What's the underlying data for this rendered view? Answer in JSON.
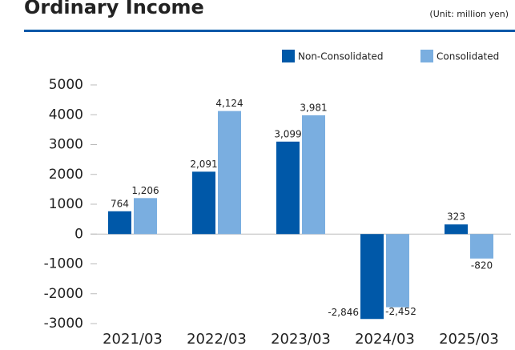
{
  "chart_data": {
    "type": "bar",
    "title": "Ordinary Income",
    "subtitle": "(Unit: million yen)",
    "categories": [
      "2021/03",
      "2022/03",
      "2023/03",
      "2024/03",
      "2025/03"
    ],
    "series": [
      {
        "name": "Non-Consolidated",
        "color": "#0058a8",
        "values": [
          764,
          2091,
          3099,
          -2846,
          323
        ],
        "value_labels": [
          "764",
          "2,091",
          "3,099",
          "-2,846",
          "323"
        ]
      },
      {
        "name": "Consolidated",
        "color": "#7aaee0",
        "values": [
          1206,
          4124,
          3981,
          -2452,
          -820
        ],
        "value_labels": [
          "1,206",
          "4,124",
          "3,981",
          "-2,452",
          "-820"
        ]
      }
    ],
    "ylim": [
      -3000,
      5000
    ],
    "yticks": [
      -3000,
      -2000,
      -1000,
      0,
      1000,
      2000,
      3000,
      4000,
      5000
    ],
    "legend": "top-right"
  }
}
